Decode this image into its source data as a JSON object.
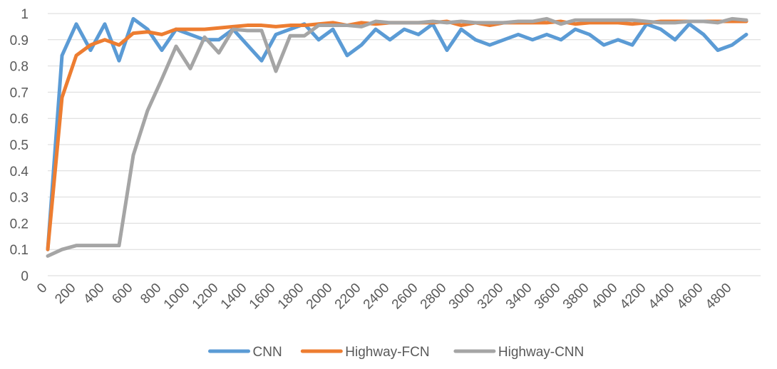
{
  "chart_data": {
    "type": "line",
    "title": "",
    "xlabel": "",
    "ylabel": "",
    "ylim": [
      0,
      1
    ],
    "yticks": [
      "0",
      "0.1",
      "0.2",
      "0.3",
      "0.4",
      "0.5",
      "0.6",
      "0.7",
      "0.8",
      "0.9",
      "1"
    ],
    "x": [
      0,
      100,
      200,
      300,
      400,
      500,
      600,
      700,
      800,
      900,
      1000,
      1100,
      1200,
      1300,
      1400,
      1500,
      1600,
      1700,
      1800,
      1900,
      2000,
      2100,
      2200,
      2300,
      2400,
      2500,
      2600,
      2700,
      2800,
      2900,
      3000,
      3100,
      3200,
      3300,
      3400,
      3500,
      3600,
      3700,
      3800,
      3900,
      4000,
      4100,
      4200,
      4300,
      4400,
      4500,
      4600,
      4700,
      4800,
      4900
    ],
    "xticks": [
      "0",
      "200",
      "400",
      "600",
      "800",
      "1000",
      "1200",
      "1400",
      "1600",
      "1800",
      "2000",
      "2200",
      "2400",
      "2600",
      "2800",
      "3000",
      "3200",
      "3400",
      "3600",
      "3800",
      "4000",
      "4200",
      "4400",
      "4600",
      "4800"
    ],
    "grid": true,
    "legend_position": "bottom",
    "series": [
      {
        "name": "CNN",
        "color": "#5B9BD5",
        "values": [
          0.1,
          0.84,
          0.96,
          0.86,
          0.96,
          0.82,
          0.98,
          0.94,
          0.86,
          0.94,
          0.92,
          0.9,
          0.9,
          0.94,
          0.88,
          0.82,
          0.92,
          0.94,
          0.96,
          0.9,
          0.94,
          0.84,
          0.88,
          0.94,
          0.9,
          0.94,
          0.92,
          0.96,
          0.86,
          0.94,
          0.9,
          0.88,
          0.9,
          0.92,
          0.9,
          0.92,
          0.9,
          0.94,
          0.92,
          0.88,
          0.9,
          0.88,
          0.96,
          0.94,
          0.9,
          0.96,
          0.92,
          0.86,
          0.88,
          0.92
        ]
      },
      {
        "name": "Highway-FCN",
        "color": "#ED7D31",
        "values": [
          0.1,
          0.68,
          0.84,
          0.88,
          0.9,
          0.88,
          0.925,
          0.93,
          0.92,
          0.94,
          0.94,
          0.94,
          0.945,
          0.95,
          0.955,
          0.955,
          0.95,
          0.955,
          0.955,
          0.96,
          0.965,
          0.955,
          0.965,
          0.96,
          0.965,
          0.965,
          0.965,
          0.965,
          0.97,
          0.955,
          0.965,
          0.955,
          0.965,
          0.965,
          0.965,
          0.965,
          0.97,
          0.96,
          0.965,
          0.965,
          0.965,
          0.96,
          0.965,
          0.97,
          0.97,
          0.97,
          0.97,
          0.97,
          0.97,
          0.97
        ]
      },
      {
        "name": "Highway-CNN",
        "color": "#A5A5A5",
        "values": [
          0.075,
          0.1,
          0.115,
          0.115,
          0.115,
          0.115,
          0.46,
          0.63,
          0.75,
          0.875,
          0.79,
          0.91,
          0.85,
          0.94,
          0.935,
          0.935,
          0.78,
          0.915,
          0.915,
          0.955,
          0.955,
          0.955,
          0.95,
          0.97,
          0.965,
          0.965,
          0.965,
          0.97,
          0.965,
          0.97,
          0.965,
          0.965,
          0.965,
          0.97,
          0.97,
          0.98,
          0.96,
          0.975,
          0.975,
          0.975,
          0.975,
          0.975,
          0.97,
          0.965,
          0.965,
          0.97,
          0.97,
          0.965,
          0.98,
          0.975
        ]
      }
    ]
  }
}
